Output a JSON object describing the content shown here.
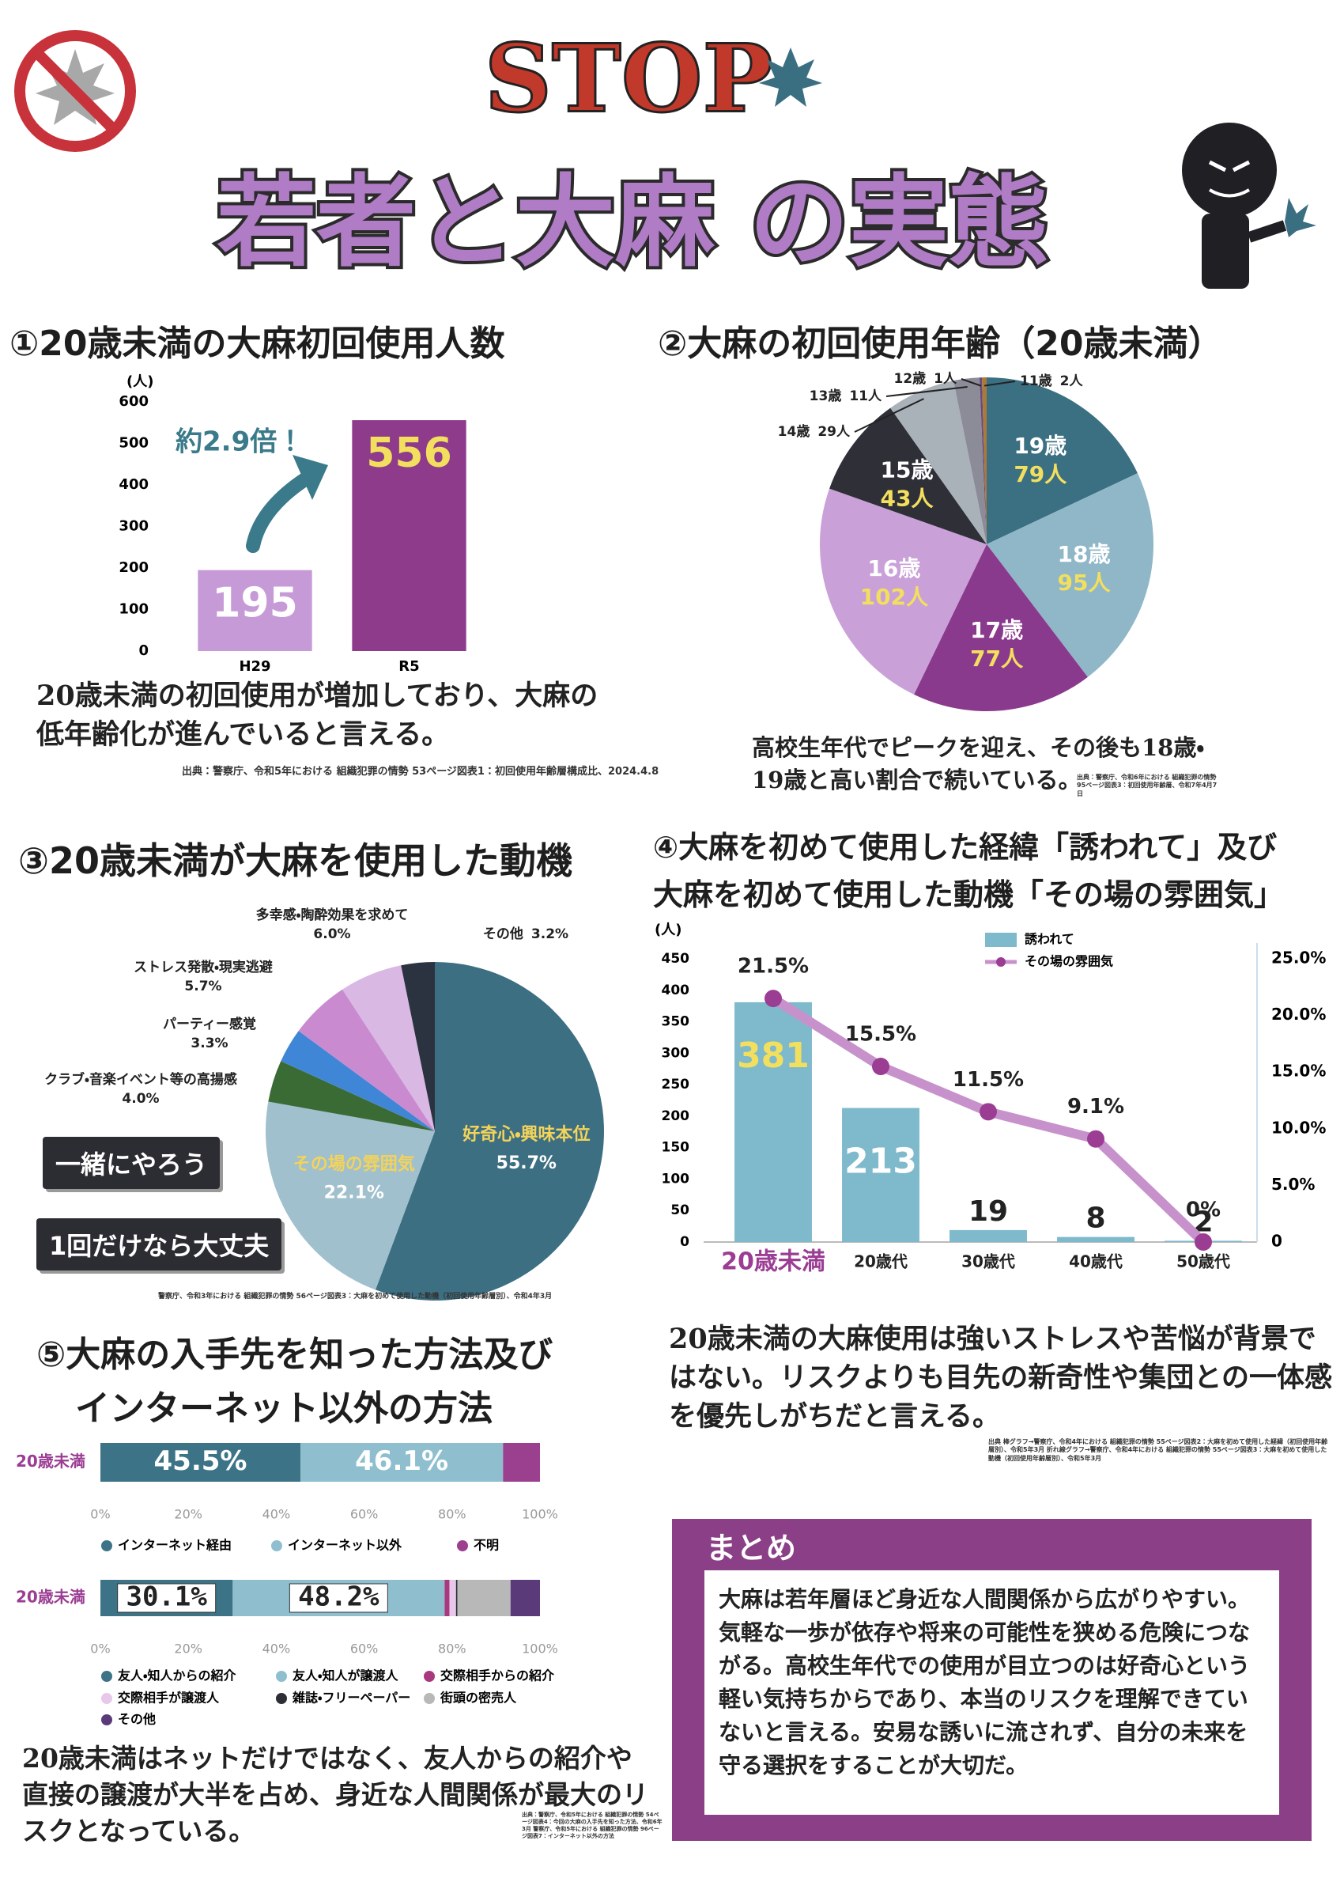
{
  "header": {
    "stop": "STOP",
    "title": "若者と大麻 の実態"
  },
  "sections": [
    {
      "heading": "①20歳未満の大麻初回使用人数",
      "text": "20歳未満の初回使用が増加しており、大麻の低年齢化が進んでいると言える。",
      "source": "出典：警察庁、令和5年における 組織犯罪の情勢 53ページ図表1：初回使用年齢層構成比、2024.4.8"
    },
    {
      "heading": "②大麻の初回使用年齢（20歳未満）",
      "text": "高校生年代でピークを迎え、その後も18歳・19歳と高い割合で続いている。",
      "source": "出典：警察庁、令和6年における 組織犯罪の情勢 95ページ図表3：初回使用年齢層、令和7年4月7日"
    },
    {
      "heading": "③20歳未満が大麻を使用した動機",
      "callouts": [
        "一緒にやろう",
        "1回だけなら大丈夫"
      ],
      "source": "警察庁、令和3年における 組織犯罪の情勢 56ページ図表3：大麻を初めて使用した動機（初回使用年齢層別）、令和4年3月"
    },
    {
      "heading": [
        "④大麻を初めて使用した経緯「誘われて」及び",
        "大麻を初めて使用した動機「その場の雰囲気」"
      ],
      "text": "20歳未満の大麻使用は強いストレスや苦悩が背景ではない。リスクよりも目先の新奇性や集団との一体感を優先しがちだと言える。",
      "source": "出典 棒グラフ→警察庁、令和4年における 組織犯罪の情勢 55ページ図表2：大麻を初めて使用した経緯（初回使用年齢層別）、令和5年3月 折れ線グラフ→警察庁、令和4年における 組織犯罪の情勢 55ページ図表3：大麻を初めて使用した動機（初回使用年齢層別）、令和5年3月"
    },
    {
      "heading": [
        "⑤大麻の入手先を知った方法及び",
        "インターネット以外の方法"
      ],
      "text": "20歳未満はネットだけではなく、友人からの紹介や直接の譲渡が大半を占め、身近な人間関係が最大のリスクとなっている。",
      "source": "出典：警察庁、令和5年における 組織犯罪の情勢 54ページ図表4：今回の大麻の入手先を知った方法、令和6年3月 警察庁、令和5年における 組織犯罪の情勢 96ページ図表7：インターネット以外の方法"
    }
  ],
  "summary": {
    "title": "まとめ",
    "text": "大麻は若年層ほど身近な人間関係から広がりやすい。気軽な一歩が依存や将来の可能性を狭める危険につながる。高校生年代での使用が目立つのは好奇心という軽い気持ちからであり、本当のリスクを理解できていないと言える。安易な誘いに流されず、自分の未来を守る選択をすることが大切だ。"
  },
  "chart_data": [
    {
      "type": "bar",
      "categories": [
        "H29",
        "R5"
      ],
      "values": [
        195,
        556
      ],
      "colors": [
        "#c69ad6",
        "#8e3b8c"
      ],
      "ylim": [
        0,
        600
      ],
      "yticks": [
        0,
        100,
        200,
        300,
        400,
        500,
        600
      ],
      "y_label": "(人)",
      "annotation": "約2.9倍！",
      "grid": false
    },
    {
      "type": "pie",
      "categories": [
        "19歳",
        "18歳",
        "17歳",
        "16歳",
        "15歳",
        "14歳",
        "13歳",
        "12歳",
        "11歳"
      ],
      "values": [
        79,
        95,
        77,
        102,
        43,
        29,
        11,
        1,
        2
      ],
      "value_labels": [
        "79人",
        "95人",
        "77人",
        "102人",
        "43人",
        "29人",
        "11人",
        "1人",
        "2人"
      ],
      "colors": [
        "#3b6f82",
        "#8fb7c7",
        "#8a3a8c",
        "#c9a0d7",
        "#2f2f38",
        "#a9b1b9",
        "#8c8b98",
        "#6b4a7a",
        "#a87b3a"
      ]
    },
    {
      "type": "pie",
      "categories": [
        "好奇心・興味本位",
        "その場の雰囲気",
        "クラブ・音楽イベント等の高揚感",
        "パーティー感覚",
        "ストレス発散・現実逃避",
        "多幸感・陶酔効果を求めて",
        "その他"
      ],
      "values": [
        55.7,
        22.1,
        4.0,
        3.3,
        5.7,
        6.0,
        3.2
      ],
      "value_labels": [
        "55.7%",
        "22.1%",
        "4.0%",
        "3.3%",
        "5.7%",
        "6.0%",
        "3.2%"
      ],
      "colors": [
        "#3d6f83",
        "#a0c0cd",
        "#3b6b35",
        "#3f86d6",
        "#c98ad0",
        "#d9b8e3",
        "#2b3340"
      ]
    },
    {
      "type": "combo",
      "categories": [
        "20歳未満",
        "20歳代",
        "30歳代",
        "40歳代",
        "50歳代"
      ],
      "series": [
        {
          "name": "誘われて",
          "type": "bar",
          "axis": "y",
          "color": "#7fb9cc",
          "values": [
            381,
            213,
            19,
            8,
            2
          ]
        },
        {
          "name": "その場の雰囲気",
          "type": "line",
          "axis": "y2",
          "color": "#c792cc",
          "marker_color": "#9b3d93",
          "values": [
            21.5,
            15.5,
            11.5,
            9.1,
            0
          ],
          "value_labels": [
            "21.5%",
            "15.5%",
            "11.5%",
            "9.1%",
            "0%"
          ]
        }
      ],
      "ylim": [
        0,
        450
      ],
      "yticks": [
        0,
        50,
        100,
        150,
        200,
        250,
        300,
        350,
        400,
        450
      ],
      "y_label": "(人)",
      "y2lim": [
        0,
        25
      ],
      "y2ticks": [
        {
          "value": 0,
          "label": "0"
        },
        {
          "value": 5,
          "label": "5.0%"
        },
        {
          "value": 10,
          "label": "10.0%"
        },
        {
          "value": 15,
          "label": "15.0%"
        },
        {
          "value": 20,
          "label": "20.0%"
        },
        {
          "value": 25,
          "label": "25.0%"
        }
      ]
    },
    {
      "type": "hbar",
      "categories": [
        "20歳未満"
      ],
      "series": [
        {
          "name": "インターネット経由",
          "color": "#3d7386",
          "values": [
            45.5
          ],
          "value_labels": [
            "45.5%"
          ]
        },
        {
          "name": "インターネット以外",
          "color": "#8fbfcf",
          "values": [
            46.1
          ],
          "value_labels": [
            "46.1%"
          ]
        },
        {
          "name": "不明",
          "color": "#9b3f8f",
          "values": [
            8.4
          ]
        }
      ],
      "xlim": [
        0,
        100
      ],
      "xticks": [
        {
          "value": 0,
          "label": "0%"
        },
        {
          "value": 20,
          "label": "20%"
        },
        {
          "value": 40,
          "label": "40%"
        },
        {
          "value": 60,
          "label": "60%"
        },
        {
          "value": 80,
          "label": "80%"
        },
        {
          "value": 100,
          "label": "100%"
        }
      ]
    },
    {
      "type": "hbar",
      "categories": [
        "20歳未満"
      ],
      "series": [
        {
          "name": "友人・知人からの紹介",
          "color": "#3d7386",
          "values": [
            30.1
          ],
          "value_labels": [
            "30.1%"
          ]
        },
        {
          "name": "友人・知人が譲渡人",
          "color": "#8fbfcf",
          "values": [
            48.2
          ],
          "value_labels": [
            "48.2%"
          ]
        },
        {
          "name": "交際相手からの紹介",
          "color": "#a8387f",
          "values": [
            1.1
          ]
        },
        {
          "name": "交際相手が譲渡人",
          "color": "#e8c8ea",
          "values": [
            1.5
          ]
        },
        {
          "name": "雑誌・フリーペーパー",
          "color": "#2d2d35",
          "values": [
            0.3
          ]
        },
        {
          "name": "街頭の密売人",
          "color": "#b8b8b8",
          "values": [
            12.1
          ]
        },
        {
          "name": "その他",
          "color": "#5b3a7a",
          "values": [
            6.7
          ]
        }
      ],
      "xlim": [
        0,
        100
      ],
      "xticks": [
        {
          "value": 0,
          "label": "0%"
        },
        {
          "value": 20,
          "label": "20%"
        },
        {
          "value": 40,
          "label": "40%"
        },
        {
          "value": 60,
          "label": "60%"
        },
        {
          "value": 80,
          "label": "80%"
        },
        {
          "value": 100,
          "label": "100%"
        }
      ]
    }
  ]
}
